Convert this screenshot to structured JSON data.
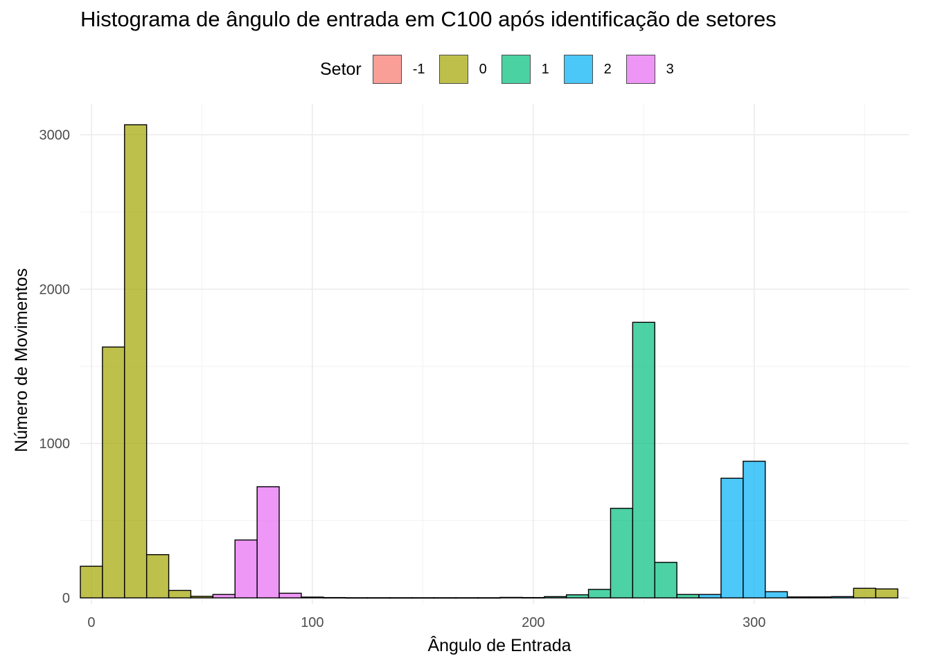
{
  "chart_data": {
    "type": "bar",
    "subtype": "histogram",
    "title": "Histograma de ângulo de entrada em C100 após identificação de setores",
    "xlabel": "Ângulo de Entrada",
    "ylabel": "Número de Movimentos",
    "xlim": [
      -5,
      370
    ],
    "ylim": [
      -40,
      3200
    ],
    "x_ticks": [
      0,
      100,
      200,
      300
    ],
    "x_tick_labels": [
      "0",
      "100",
      "200",
      "300"
    ],
    "y_ticks": [
      0,
      1000,
      2000,
      3000
    ],
    "y_tick_labels": [
      "0",
      "1000",
      "2000",
      "3000"
    ],
    "grid": true,
    "legend": {
      "title": "Setor",
      "position": "top",
      "entries": [
        {
          "label": "-1",
          "color": "#F8766D"
        },
        {
          "label": "0",
          "color": "#A3A500"
        },
        {
          "label": "1",
          "color": "#00BF7D"
        },
        {
          "label": "2",
          "color": "#00B0F6"
        },
        {
          "label": "3",
          "color": "#E76BF3"
        }
      ]
    },
    "bin_width": 10,
    "bars": [
      {
        "x": 0,
        "y": 205,
        "setor": "0"
      },
      {
        "x": 10,
        "y": 1625,
        "setor": "0"
      },
      {
        "x": 20,
        "y": 3065,
        "setor": "0"
      },
      {
        "x": 30,
        "y": 280,
        "setor": "0"
      },
      {
        "x": 40,
        "y": 48,
        "setor": "0"
      },
      {
        "x": 50,
        "y": 10,
        "setor": "0"
      },
      {
        "x": 60,
        "y": 22,
        "setor": "3"
      },
      {
        "x": 70,
        "y": 375,
        "setor": "3"
      },
      {
        "x": 80,
        "y": 720,
        "setor": "3"
      },
      {
        "x": 90,
        "y": 30,
        "setor": "3"
      },
      {
        "x": 100,
        "y": 5,
        "setor": "3"
      },
      {
        "x": 110,
        "y": 2,
        "setor": "3"
      },
      {
        "x": 120,
        "y": 1,
        "setor": "3"
      },
      {
        "x": 130,
        "y": 1,
        "setor": "3"
      },
      {
        "x": 140,
        "y": 1,
        "setor": "3"
      },
      {
        "x": 150,
        "y": 1,
        "setor": "1"
      },
      {
        "x": 160,
        "y": 1,
        "setor": "1"
      },
      {
        "x": 170,
        "y": 1,
        "setor": "1"
      },
      {
        "x": 180,
        "y": 1,
        "setor": "1"
      },
      {
        "x": 190,
        "y": 3,
        "setor": "1"
      },
      {
        "x": 200,
        "y": 2,
        "setor": "1"
      },
      {
        "x": 210,
        "y": 8,
        "setor": "1"
      },
      {
        "x": 220,
        "y": 20,
        "setor": "1"
      },
      {
        "x": 230,
        "y": 55,
        "setor": "1"
      },
      {
        "x": 240,
        "y": 580,
        "setor": "1"
      },
      {
        "x": 250,
        "y": 1785,
        "setor": "1"
      },
      {
        "x": 260,
        "y": 230,
        "setor": "1"
      },
      {
        "x": 270,
        "y": 22,
        "setor": "1"
      },
      {
        "x": 280,
        "y": 22,
        "setor": "2"
      },
      {
        "x": 290,
        "y": 775,
        "setor": "2"
      },
      {
        "x": 300,
        "y": 885,
        "setor": "2"
      },
      {
        "x": 310,
        "y": 40,
        "setor": "2"
      },
      {
        "x": 320,
        "y": 6,
        "setor": "2"
      },
      {
        "x": 330,
        "y": 6,
        "setor": "2"
      },
      {
        "x": 340,
        "y": 8,
        "setor": "2"
      },
      {
        "x": 350,
        "y": 62,
        "setor": "0"
      },
      {
        "x": 360,
        "y": 58,
        "setor": "0"
      }
    ]
  }
}
